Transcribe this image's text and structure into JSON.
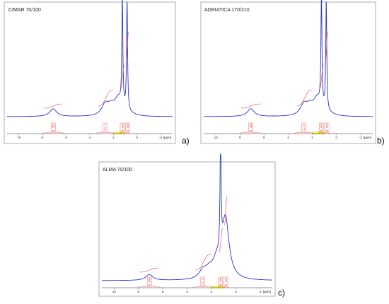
{
  "colors": {
    "spectrum": "#2b33c9",
    "integral": "#f04040",
    "region": "#e8f030",
    "frame": "#9a9a9a"
  },
  "chart_data": [
    {
      "type": "line",
      "title": "CIMAR 70/100",
      "panel_label": "a)",
      "xlabel": "[ppm]",
      "xlim": [
        11,
        -3
      ],
      "x_reversed": true,
      "xticks": [
        "10",
        "8",
        "6",
        "4",
        "2",
        "0",
        "-2"
      ],
      "integral_labels": [
        "1.082",
        "12.2",
        "0.000",
        "1.000"
      ],
      "peaks_ppm": [
        {
          "ppm": 7.1,
          "h": 0.07
        },
        {
          "ppm": 2.7,
          "h": 0.09
        },
        {
          "ppm": 2.2,
          "h": 0.06
        },
        {
          "ppm": 1.6,
          "h": 0.12
        },
        {
          "ppm": 1.25,
          "h": 1.0
        },
        {
          "ppm": 0.85,
          "h": 1.0
        }
      ]
    },
    {
      "type": "line",
      "title": "ADRIATICA 170/210",
      "panel_label": "b)",
      "xlabel": "[ppm]",
      "xlim": [
        11,
        -3
      ],
      "x_reversed": true,
      "xticks": [
        "10",
        "8",
        "6",
        "4",
        "2",
        "0",
        "-2"
      ],
      "integral_labels": [
        "1.084",
        "12.9",
        "0.000",
        "1.000"
      ],
      "peaks_ppm": [
        {
          "ppm": 7.1,
          "h": 0.07
        },
        {
          "ppm": 2.7,
          "h": 0.09
        },
        {
          "ppm": 2.2,
          "h": 0.06
        },
        {
          "ppm": 1.6,
          "h": 0.12
        },
        {
          "ppm": 1.25,
          "h": 1.0
        },
        {
          "ppm": 0.85,
          "h": 1.0
        }
      ]
    },
    {
      "type": "line",
      "title": "ALMA 70/100",
      "panel_label": "c)",
      "xlabel": "[ppm]",
      "xlim": [
        11,
        -3
      ],
      "x_reversed": true,
      "xticks": [
        "10",
        "8",
        "6",
        "4",
        "2",
        "0",
        "-2"
      ],
      "integral_labels": [
        "1.084",
        "15.0",
        "0.000",
        "1.000"
      ],
      "peaks_ppm": [
        {
          "ppm": 7.1,
          "h": 0.05
        },
        {
          "ppm": 2.7,
          "h": 0.06
        },
        {
          "ppm": 2.2,
          "h": 0.05
        },
        {
          "ppm": 1.6,
          "h": 0.1
        },
        {
          "ppm": 1.25,
          "h": 1.0
        },
        {
          "ppm": 0.85,
          "h": 0.5
        }
      ]
    }
  ]
}
